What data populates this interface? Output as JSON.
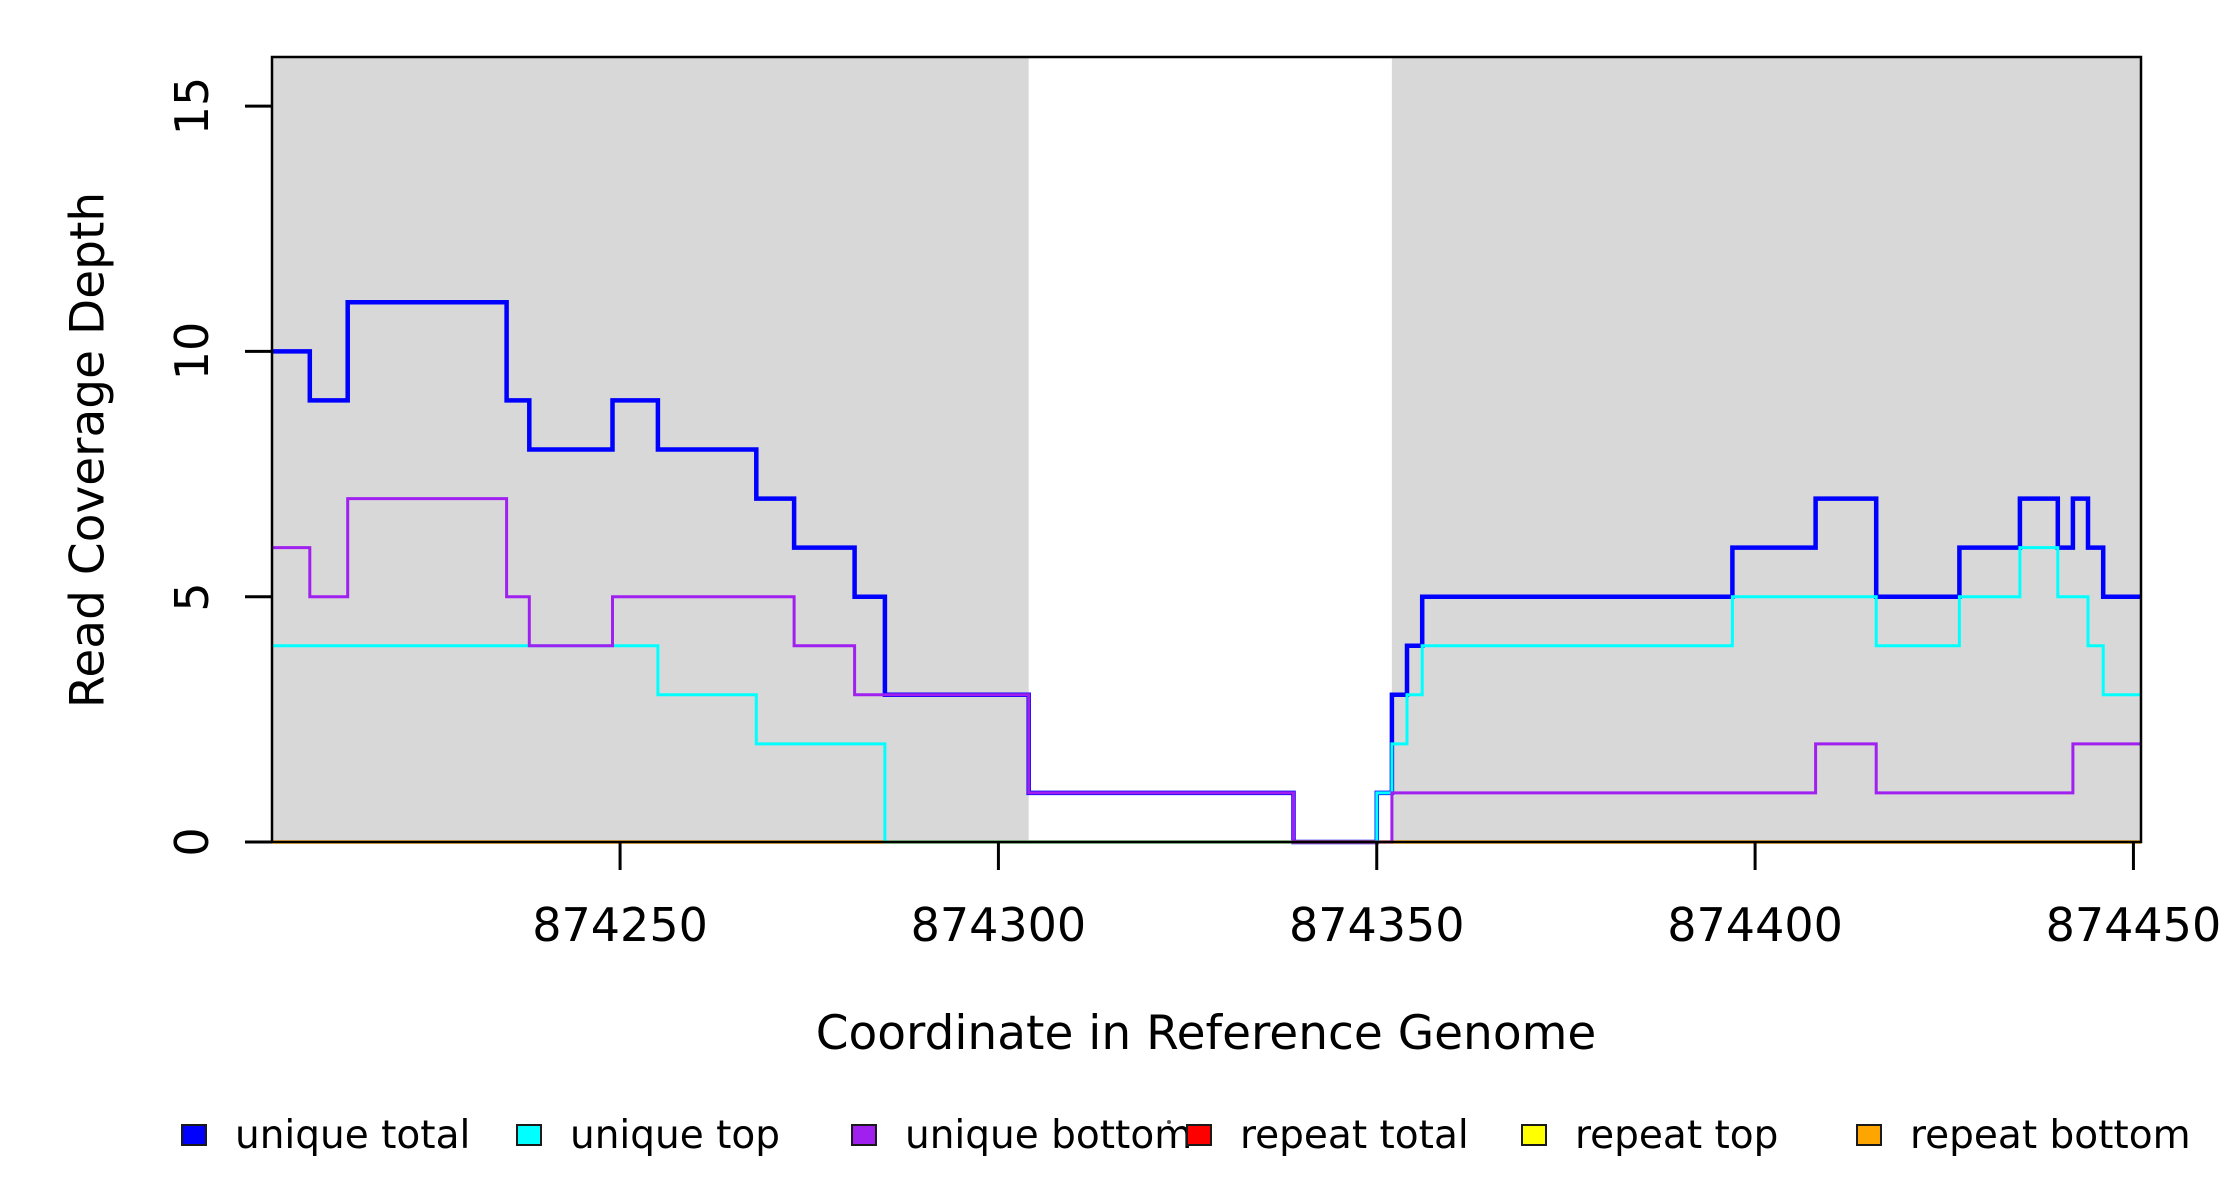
{
  "chart_data": {
    "type": "line",
    "subtype": "step-coverage",
    "title": "",
    "xlabel": "Coordinate in Reference Genome",
    "ylabel": "Read Coverage Depth",
    "xlim": [
      874204,
      874451
    ],
    "ylim": [
      0,
      16
    ],
    "grid": false,
    "x_ticks": [
      874250,
      874300,
      874350,
      874400,
      874450
    ],
    "x_tick_labels": [
      "874250",
      "874300",
      "874350",
      "874400",
      "874450"
    ],
    "y_ticks": [
      0,
      5,
      10,
      15
    ],
    "y_tick_labels": [
      "0",
      "5",
      "10",
      "15"
    ],
    "shade_color": "#D8D8D8",
    "shaded_regions": [
      {
        "x0": 874204,
        "x1": 874304
      },
      {
        "x0": 874352,
        "x1": 874451
      }
    ],
    "series": [
      {
        "id": "unique_total",
        "name": "unique total",
        "color": "#0000FF",
        "width": 4.5,
        "steps": [
          [
            874204,
            10
          ],
          [
            874209,
            9
          ],
          [
            874214,
            11
          ],
          [
            874235,
            9
          ],
          [
            874238,
            8
          ],
          [
            874249,
            9
          ],
          [
            874255,
            8
          ],
          [
            874268,
            7
          ],
          [
            874273,
            6
          ],
          [
            874281,
            5
          ],
          [
            874285,
            3
          ],
          [
            874304,
            1
          ],
          [
            874339,
            0
          ],
          [
            874350,
            1
          ],
          [
            874352,
            3
          ],
          [
            874354,
            4
          ],
          [
            874356,
            5
          ],
          [
            874397,
            6
          ],
          [
            874408,
            7
          ],
          [
            874416,
            5
          ],
          [
            874427,
            6
          ],
          [
            874435,
            7
          ],
          [
            874440,
            6
          ],
          [
            874442,
            7
          ],
          [
            874444,
            6
          ],
          [
            874446,
            5
          ]
        ]
      },
      {
        "id": "repeat_total",
        "name": "repeat total",
        "color": "#FF0000",
        "width": 3,
        "steps": [
          [
            874204,
            0
          ]
        ]
      },
      {
        "id": "repeat_top",
        "name": "repeat top",
        "color": "#FFFF00",
        "width": 3,
        "steps": [
          [
            874204,
            0
          ]
        ]
      },
      {
        "id": "repeat_bottom",
        "name": "repeat bottom",
        "color": "#FFA500",
        "width": 3.5,
        "steps": [
          [
            874204,
            0
          ]
        ]
      },
      {
        "id": "unique_top",
        "name": "unique top",
        "color": "#00FFFF",
        "width": 3,
        "steps": [
          [
            874204,
            4
          ],
          [
            874255,
            3
          ],
          [
            874268,
            2
          ],
          [
            874285,
            0
          ],
          [
            874350,
            1
          ],
          [
            874352,
            2
          ],
          [
            874354,
            3
          ],
          [
            874356,
            4
          ],
          [
            874397,
            5
          ],
          [
            874416,
            4
          ],
          [
            874427,
            5
          ],
          [
            874435,
            6
          ],
          [
            874440,
            5
          ],
          [
            874444,
            4
          ],
          [
            874446,
            3
          ]
        ]
      },
      {
        "id": "unique_bottom",
        "name": "unique bottom",
        "color": "#A020F0",
        "width": 3,
        "steps": [
          [
            874204,
            6
          ],
          [
            874209,
            5
          ],
          [
            874214,
            7
          ],
          [
            874235,
            5
          ],
          [
            874238,
            4
          ],
          [
            874249,
            5
          ],
          [
            874273,
            4
          ],
          [
            874281,
            3
          ],
          [
            874304,
            1
          ],
          [
            874339,
            0
          ],
          [
            874352,
            1
          ],
          [
            874408,
            2
          ],
          [
            874416,
            1
          ],
          [
            874442,
            2
          ]
        ]
      }
    ],
    "legend_position": "bottom",
    "legend": [
      {
        "id": "unique_total",
        "label": "unique total",
        "color": "#0000FF"
      },
      {
        "id": "unique_top",
        "label": "unique top",
        "color": "#00FFFF"
      },
      {
        "id": "unique_bottom",
        "label": "unique bottom",
        "color": "#A020F0"
      },
      {
        "id": "repeat_total",
        "label": "repeat total",
        "color": "#FF0000"
      },
      {
        "id": "repeat_top",
        "label": "repeat top",
        "color": "#FFFF00"
      },
      {
        "id": "repeat_bottom",
        "label": "repeat bottom",
        "color": "#FFA500"
      }
    ]
  }
}
